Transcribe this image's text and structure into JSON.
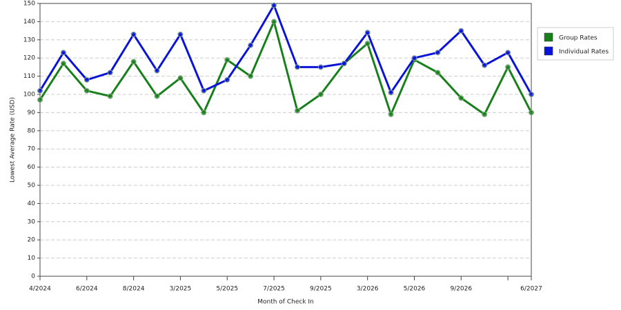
{
  "chart_data": {
    "type": "line",
    "x_label": "Month of Check In",
    "y_label": "Lowest Average Rate (USD)",
    "categories": [
      "4/2024",
      null,
      "6/2024",
      null,
      "8/2024",
      null,
      "3/2025",
      null,
      "5/2025",
      null,
      "7/2025",
      null,
      "9/2025",
      null,
      "3/2026",
      null,
      "5/2026",
      null,
      "9/2026",
      null,
      null,
      "6/2027"
    ],
    "series": [
      {
        "name": "Group Rates",
        "color": "#18801a",
        "values": [
          97,
          117,
          102,
          99,
          118,
          99,
          109,
          90,
          119,
          110,
          140,
          91,
          100,
          117,
          128,
          89,
          119,
          112,
          98,
          89,
          115,
          90
        ]
      },
      {
        "name": "Individual Rates",
        "color": "#0a14d8",
        "values": [
          102,
          123,
          108,
          112,
          133,
          113,
          133,
          102,
          108,
          127,
          149,
          115,
          115,
          117,
          134,
          101,
          120,
          123,
          135,
          116,
          123,
          100
        ]
      }
    ],
    "ylim": [
      0,
      150
    ],
    "yticks": [
      0,
      10,
      20,
      30,
      40,
      50,
      60,
      70,
      80,
      90,
      100,
      110,
      120,
      130,
      140,
      150
    ],
    "grid": true,
    "legend": "top-right"
  }
}
